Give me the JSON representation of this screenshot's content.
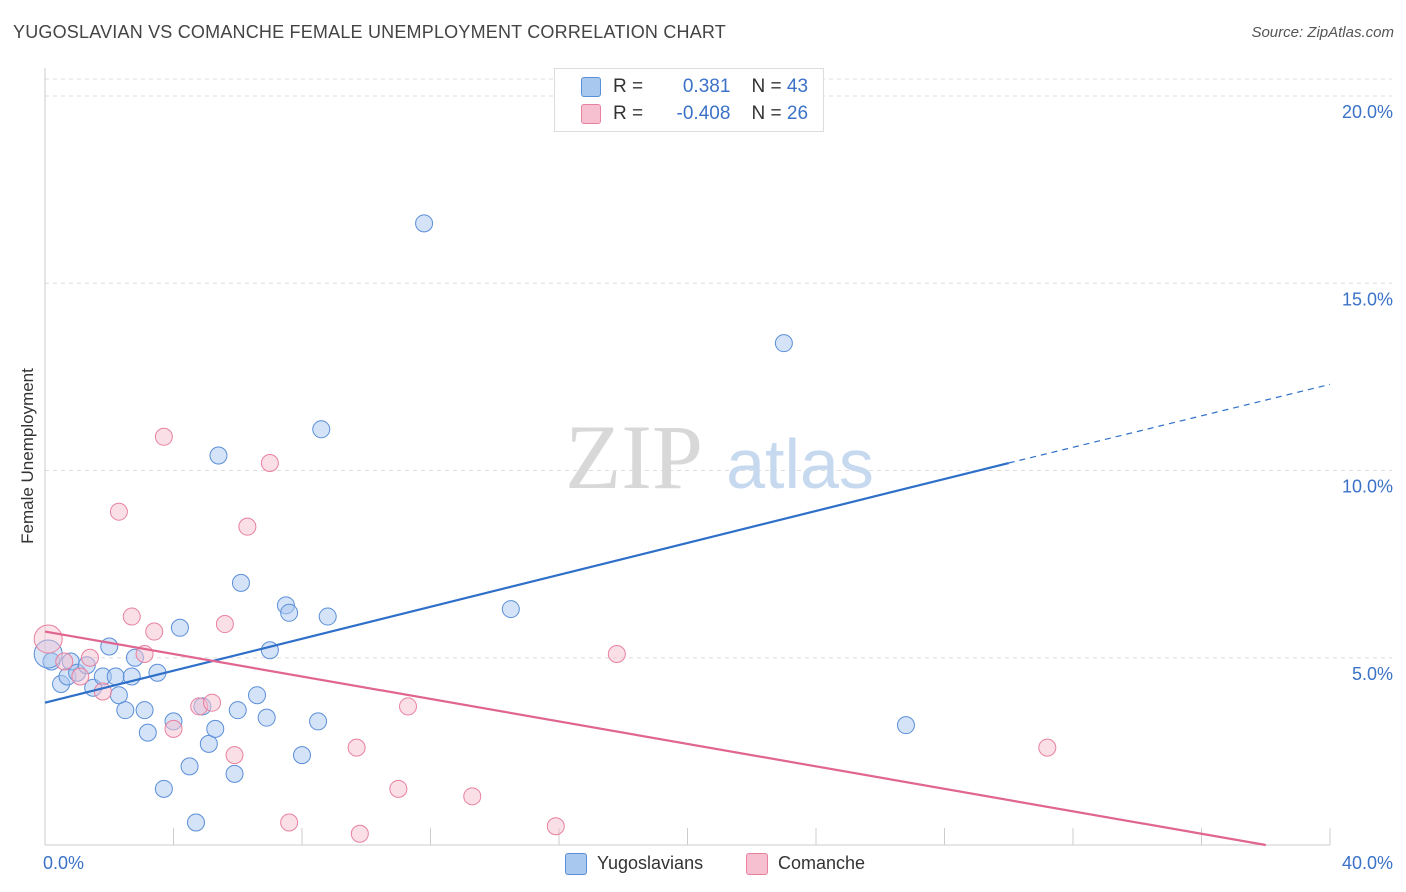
{
  "title": "YUGOSLAVIAN VS COMANCHE FEMALE UNEMPLOYMENT CORRELATION CHART",
  "source": "Source: ZipAtlas.com",
  "watermark": {
    "zip": "ZIP",
    "atlas": "atlas"
  },
  "legend": {
    "rows": [
      {
        "r_label": "R =",
        "r_value": "0.381",
        "n_label": "N =",
        "n_value": "43",
        "color": "#a9c8f0",
        "border": "#5b8fd8"
      },
      {
        "r_label": "R =",
        "r_value": "-0.408",
        "n_label": "N =",
        "n_value": "26",
        "color": "#f7c0d0",
        "border": "#e8819f"
      }
    ]
  },
  "bottom_legend": [
    {
      "label": "Yugoslavians",
      "color": "#a9c8f0",
      "border": "#5b8fd8"
    },
    {
      "label": "Comanche",
      "color": "#f7c0d0",
      "border": "#e8819f"
    }
  ],
  "chart_data": {
    "type": "scatter",
    "xlabel": "",
    "ylabel": "Female Unemployment",
    "xlim": [
      0,
      40
    ],
    "ylim": [
      0,
      20
    ],
    "x_tick_labels": [
      "0.0%",
      "40.0%"
    ],
    "y_ticks": [
      {
        "value": 5,
        "label": "5.0%"
      },
      {
        "value": 10,
        "label": "10.0%"
      },
      {
        "value": 15,
        "label": "15.0%"
      },
      {
        "value": 20,
        "label": "20.0%"
      }
    ],
    "grid": true,
    "series": [
      {
        "name": "Yugoslavians",
        "color": "#a9c8f0",
        "stroke": "#5b8fd8",
        "line_color": "#2e6fc9",
        "trend": {
          "x0": 0,
          "y0": 3.8,
          "x1": 30,
          "y1": 10.2,
          "dash_to_x": 40,
          "dash_to_y": 12.3
        },
        "points": [
          [
            0.2,
            4.9
          ],
          [
            0.5,
            4.3
          ],
          [
            0.7,
            4.5
          ],
          [
            0.8,
            4.9
          ],
          [
            1.0,
            4.6
          ],
          [
            1.3,
            4.8
          ],
          [
            1.5,
            4.2
          ],
          [
            1.8,
            4.5
          ],
          [
            2.0,
            5.3
          ],
          [
            2.2,
            4.5
          ],
          [
            2.3,
            4.0
          ],
          [
            2.5,
            3.6
          ],
          [
            2.7,
            4.5
          ],
          [
            2.8,
            5.0
          ],
          [
            3.1,
            3.6
          ],
          [
            3.2,
            3.0
          ],
          [
            3.5,
            4.6
          ],
          [
            3.7,
            1.5
          ],
          [
            4.0,
            3.3
          ],
          [
            4.2,
            5.8
          ],
          [
            4.5,
            2.1
          ],
          [
            4.7,
            0.6
          ],
          [
            4.9,
            3.7
          ],
          [
            5.1,
            2.7
          ],
          [
            5.3,
            3.1
          ],
          [
            5.4,
            10.4
          ],
          [
            5.9,
            1.9
          ],
          [
            6.0,
            3.6
          ],
          [
            6.1,
            7.0
          ],
          [
            6.6,
            4.0
          ],
          [
            6.9,
            3.4
          ],
          [
            7.0,
            5.2
          ],
          [
            7.5,
            6.4
          ],
          [
            7.6,
            6.2
          ],
          [
            8.0,
            2.4
          ],
          [
            8.5,
            3.3
          ],
          [
            8.6,
            11.1
          ],
          [
            8.8,
            6.1
          ],
          [
            11.8,
            16.6
          ],
          [
            14.5,
            6.3
          ],
          [
            23.0,
            13.4
          ],
          [
            26.8,
            3.2
          ],
          [
            0.1,
            5.1
          ]
        ]
      },
      {
        "name": "Comanche",
        "color": "#f7c0d0",
        "stroke": "#e8819f",
        "line_color": "#e0658f",
        "trend": {
          "x0": 0,
          "y0": 5.7,
          "x1": 40,
          "y1": -0.3
        },
        "points": [
          [
            0.1,
            5.5
          ],
          [
            0.6,
            4.9
          ],
          [
            1.1,
            4.5
          ],
          [
            1.4,
            5.0
          ],
          [
            1.8,
            4.1
          ],
          [
            2.3,
            8.9
          ],
          [
            2.7,
            6.1
          ],
          [
            3.1,
            5.1
          ],
          [
            3.4,
            5.7
          ],
          [
            3.7,
            10.9
          ],
          [
            4.0,
            3.1
          ],
          [
            4.8,
            3.7
          ],
          [
            5.2,
            3.8
          ],
          [
            5.6,
            5.9
          ],
          [
            5.9,
            2.4
          ],
          [
            6.3,
            8.5
          ],
          [
            7.0,
            10.2
          ],
          [
            7.6,
            0.6
          ],
          [
            9.7,
            2.6
          ],
          [
            9.8,
            0.3
          ],
          [
            11.0,
            1.5
          ],
          [
            11.3,
            3.7
          ],
          [
            13.3,
            1.3
          ],
          [
            15.9,
            0.5
          ],
          [
            17.8,
            5.1
          ],
          [
            31.2,
            2.6
          ]
        ]
      }
    ]
  }
}
